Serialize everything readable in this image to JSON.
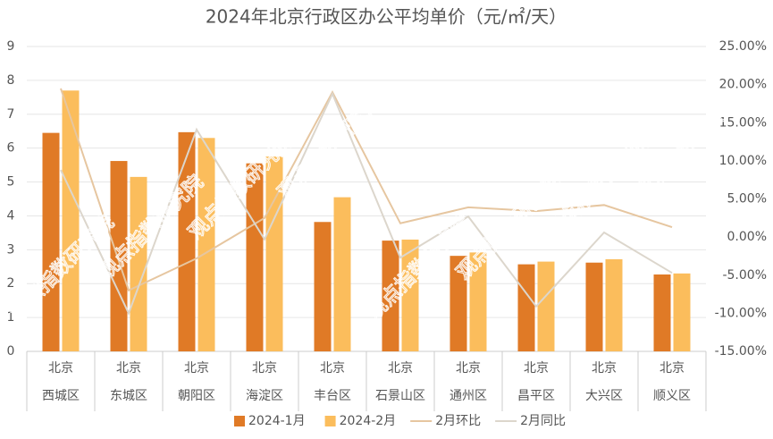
{
  "chart_data": {
    "type": "bar_line",
    "title": "2024年北京行政区办公平均单价（元/㎡/天）",
    "watermark": "观点指数研究院",
    "category_parents": [
      "北京",
      "北京",
      "北京",
      "北京",
      "北京",
      "北京",
      "北京",
      "北京",
      "北京",
      "北京"
    ],
    "categories": [
      "西城区",
      "东城区",
      "朝阳区",
      "海淀区",
      "丰台区",
      "石景山区",
      "通州区",
      "昌平区",
      "大兴区",
      "顺义区"
    ],
    "series": [
      {
        "name": "2024-1月",
        "type": "bar",
        "color": "#e07a26",
        "values": [
          6.45,
          5.62,
          6.47,
          5.55,
          3.82,
          3.27,
          2.82,
          2.57,
          2.62,
          2.27
        ]
      },
      {
        "name": "2024-2月",
        "type": "bar",
        "color": "#fbbd5c",
        "values": [
          7.7,
          5.15,
          6.3,
          5.75,
          4.55,
          3.3,
          2.92,
          2.65,
          2.72,
          2.3
        ]
      },
      {
        "name": "2月环比",
        "type": "line",
        "axis": "y2",
        "color": "#e6c6a0",
        "values": [
          19.5,
          -7.0,
          -2.8,
          2.5,
          19.0,
          1.8,
          3.9,
          3.4,
          4.2,
          1.3
        ]
      },
      {
        "name": "2月同比",
        "type": "line",
        "axis": "y2",
        "color": "#dcd6cc",
        "values": [
          8.8,
          -10.0,
          14.1,
          -0.3,
          18.8,
          -2.7,
          2.7,
          -9.1,
          0.6,
          -4.7
        ]
      }
    ],
    "ylim": [
      0,
      9
    ],
    "yticks": [
      0,
      1,
      2,
      3,
      4,
      5,
      6,
      7,
      8,
      9
    ],
    "y2lim": [
      -15,
      25
    ],
    "y2ticks": [
      {
        "value": -15,
        "label": "-15.00%"
      },
      {
        "value": -10,
        "label": "-10.00%"
      },
      {
        "value": -5,
        "label": "-5.00%"
      },
      {
        "value": 0,
        "label": "0.00%"
      },
      {
        "value": 5,
        "label": "5.00%"
      },
      {
        "value": 10,
        "label": "10.00%"
      },
      {
        "value": 15,
        "label": "15.00%"
      },
      {
        "value": 20,
        "label": "20.00%"
      },
      {
        "value": 25,
        "label": "25.00%"
      }
    ],
    "legend": "bottom"
  }
}
